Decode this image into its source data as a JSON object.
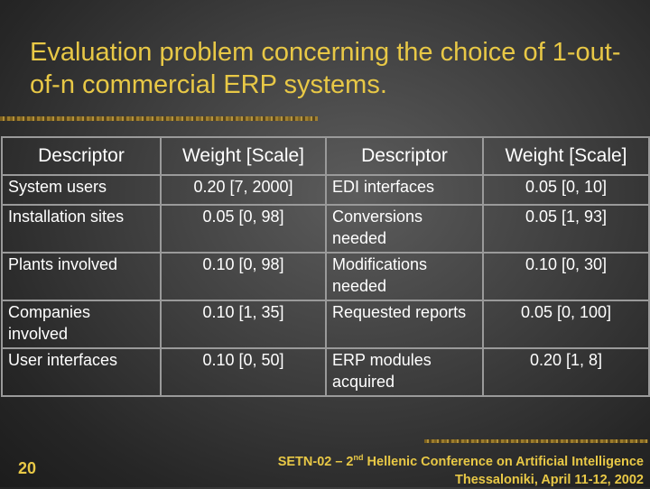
{
  "slide": {
    "title": "Evaluation problem concerning the choice of 1-out-of-n commercial ERP systems.",
    "page_number": "20",
    "footer_line1_a": "SETN-02 – 2",
    "footer_line1_sup": "nd",
    "footer_line1_b": " Hellenic Conference on Artificial Intelligence",
    "footer_line2": "Thessaloniki, April 11-12, 2002",
    "accent_color": "#e8c846"
  },
  "table": {
    "headers": [
      "Descriptor",
      "Weight [Scale]",
      "Descriptor",
      "Weight [Scale]"
    ],
    "rows": [
      [
        "System users",
        "0.20 [7, 2000]",
        "EDI interfaces",
        "0.05 [0, 10]"
      ],
      [
        "Installation sites",
        "0.05 [0, 98]",
        "Conversions needed",
        "0.05 [1, 93]"
      ],
      [
        "Plants involved",
        "0.10 [0, 98]",
        "Modifications needed",
        "0.10 [0, 30]"
      ],
      [
        "Companies involved",
        "0.10 [1, 35]",
        "Requested reports",
        "0.05 [0, 100]"
      ],
      [
        "User interfaces",
        "0.10 [0, 50]",
        "ERP modules acquired",
        "0.20 [1, 8]"
      ]
    ]
  }
}
